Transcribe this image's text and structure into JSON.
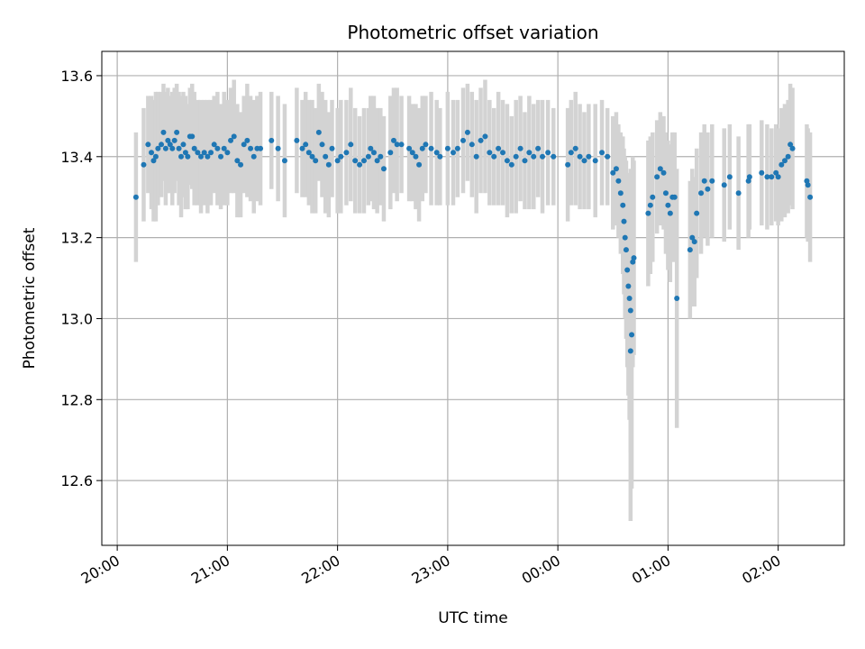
{
  "chart_data": {
    "type": "scatter",
    "title": "Photometric offset variation",
    "xlabel": "UTC time",
    "ylabel": "Photometric offset",
    "xlim": [
      -0.14,
      6.6
    ],
    "ylim": [
      12.44,
      13.66
    ],
    "grid": true,
    "colors": {
      "points": "#1f77b4",
      "errorbars": "#d3d3d3",
      "grid": "#b0b0b0"
    },
    "x_ticks": [
      {
        "value": 0,
        "label": "20:00"
      },
      {
        "value": 1,
        "label": "21:00"
      },
      {
        "value": 2,
        "label": "22:00"
      },
      {
        "value": 3,
        "label": "23:00"
      },
      {
        "value": 4,
        "label": "00:00"
      },
      {
        "value": 5,
        "label": "01:00"
      },
      {
        "value": 6,
        "label": "02:00"
      }
    ],
    "y_ticks": [
      {
        "value": 12.6,
        "label": "12.6"
      },
      {
        "value": 12.8,
        "label": "12.8"
      },
      {
        "value": 13.0,
        "label": "13.0"
      },
      {
        "value": 13.2,
        "label": "13.2"
      },
      {
        "value": 13.4,
        "label": "13.4"
      },
      {
        "value": 13.6,
        "label": "13.6"
      }
    ],
    "points": [
      [
        0.17,
        13.3,
        0.16
      ],
      [
        0.24,
        13.38,
        0.14
      ],
      [
        0.28,
        13.43,
        0.12
      ],
      [
        0.31,
        13.41,
        0.14
      ],
      [
        0.33,
        13.39,
        0.15
      ],
      [
        0.35,
        13.4,
        0.16
      ],
      [
        0.37,
        13.42,
        0.14
      ],
      [
        0.4,
        13.43,
        0.13
      ],
      [
        0.42,
        13.46,
        0.12
      ],
      [
        0.44,
        13.42,
        0.14
      ],
      [
        0.46,
        13.44,
        0.13
      ],
      [
        0.48,
        13.43,
        0.12
      ],
      [
        0.5,
        13.42,
        0.14
      ],
      [
        0.52,
        13.44,
        0.13
      ],
      [
        0.54,
        13.46,
        0.12
      ],
      [
        0.56,
        13.42,
        0.14
      ],
      [
        0.58,
        13.4,
        0.15
      ],
      [
        0.6,
        13.43,
        0.13
      ],
      [
        0.62,
        13.41,
        0.14
      ],
      [
        0.64,
        13.4,
        0.13
      ],
      [
        0.66,
        13.45,
        0.12
      ],
      [
        0.68,
        13.45,
        0.13
      ],
      [
        0.7,
        13.42,
        0.14
      ],
      [
        0.73,
        13.41,
        0.13
      ],
      [
        0.76,
        13.4,
        0.14
      ],
      [
        0.79,
        13.41,
        0.13
      ],
      [
        0.82,
        13.4,
        0.14
      ],
      [
        0.85,
        13.41,
        0.13
      ],
      [
        0.88,
        13.43,
        0.12
      ],
      [
        0.91,
        13.42,
        0.14
      ],
      [
        0.94,
        13.4,
        0.13
      ],
      [
        0.97,
        13.42,
        0.14
      ],
      [
        1.0,
        13.41,
        0.13
      ],
      [
        1.03,
        13.44,
        0.13
      ],
      [
        1.06,
        13.45,
        0.14
      ],
      [
        1.09,
        13.39,
        0.14
      ],
      [
        1.12,
        13.38,
        0.13
      ],
      [
        1.15,
        13.43,
        0.12
      ],
      [
        1.18,
        13.44,
        0.14
      ],
      [
        1.21,
        13.42,
        0.13
      ],
      [
        1.24,
        13.4,
        0.14
      ],
      [
        1.27,
        13.42,
        0.13
      ],
      [
        1.3,
        13.42,
        0.14
      ],
      [
        1.4,
        13.44,
        0.12
      ],
      [
        1.46,
        13.42,
        0.13
      ],
      [
        1.52,
        13.39,
        0.14
      ],
      [
        1.63,
        13.44,
        0.13
      ],
      [
        1.68,
        13.42,
        0.12
      ],
      [
        1.71,
        13.43,
        0.13
      ],
      [
        1.74,
        13.41,
        0.13
      ],
      [
        1.77,
        13.4,
        0.14
      ],
      [
        1.8,
        13.39,
        0.13
      ],
      [
        1.83,
        13.46,
        0.12
      ],
      [
        1.86,
        13.43,
        0.13
      ],
      [
        1.89,
        13.4,
        0.14
      ],
      [
        1.92,
        13.38,
        0.13
      ],
      [
        1.95,
        13.42,
        0.12
      ],
      [
        2.0,
        13.39,
        0.13
      ],
      [
        2.03,
        13.4,
        0.14
      ],
      [
        2.08,
        13.41,
        0.13
      ],
      [
        2.12,
        13.43,
        0.14
      ],
      [
        2.16,
        13.39,
        0.13
      ],
      [
        2.2,
        13.38,
        0.12
      ],
      [
        2.24,
        13.39,
        0.13
      ],
      [
        2.28,
        13.4,
        0.12
      ],
      [
        2.3,
        13.42,
        0.13
      ],
      [
        2.33,
        13.41,
        0.14
      ],
      [
        2.36,
        13.39,
        0.13
      ],
      [
        2.39,
        13.4,
        0.12
      ],
      [
        2.42,
        13.37,
        0.13
      ],
      [
        2.48,
        13.41,
        0.14
      ],
      [
        2.51,
        13.44,
        0.13
      ],
      [
        2.54,
        13.43,
        0.14
      ],
      [
        2.58,
        13.43,
        0.12
      ],
      [
        2.65,
        13.42,
        0.13
      ],
      [
        2.68,
        13.41,
        0.12
      ],
      [
        2.71,
        13.4,
        0.13
      ],
      [
        2.74,
        13.38,
        0.14
      ],
      [
        2.77,
        13.42,
        0.13
      ],
      [
        2.8,
        13.43,
        0.12
      ],
      [
        2.85,
        13.42,
        0.14
      ],
      [
        2.9,
        13.41,
        0.13
      ],
      [
        2.93,
        13.4,
        0.12
      ],
      [
        3.0,
        13.42,
        0.14
      ],
      [
        3.05,
        13.41,
        0.13
      ],
      [
        3.09,
        13.42,
        0.12
      ],
      [
        3.14,
        13.44,
        0.13
      ],
      [
        3.18,
        13.46,
        0.12
      ],
      [
        3.22,
        13.43,
        0.13
      ],
      [
        3.26,
        13.4,
        0.14
      ],
      [
        3.3,
        13.44,
        0.13
      ],
      [
        3.34,
        13.45,
        0.14
      ],
      [
        3.38,
        13.41,
        0.13
      ],
      [
        3.42,
        13.4,
        0.12
      ],
      [
        3.46,
        13.42,
        0.14
      ],
      [
        3.5,
        13.41,
        0.13
      ],
      [
        3.54,
        13.39,
        0.14
      ],
      [
        3.58,
        13.38,
        0.12
      ],
      [
        3.62,
        13.4,
        0.14
      ],
      [
        3.66,
        13.42,
        0.13
      ],
      [
        3.7,
        13.39,
        0.12
      ],
      [
        3.74,
        13.41,
        0.14
      ],
      [
        3.78,
        13.4,
        0.13
      ],
      [
        3.82,
        13.42,
        0.12
      ],
      [
        3.86,
        13.4,
        0.14
      ],
      [
        3.91,
        13.41,
        0.13
      ],
      [
        3.96,
        13.4,
        0.12
      ],
      [
        4.09,
        13.38,
        0.14
      ],
      [
        4.12,
        13.41,
        0.13
      ],
      [
        4.16,
        13.42,
        0.14
      ],
      [
        4.2,
        13.4,
        0.13
      ],
      [
        4.24,
        13.39,
        0.12
      ],
      [
        4.28,
        13.4,
        0.13
      ],
      [
        4.34,
        13.39,
        0.14
      ],
      [
        4.4,
        13.41,
        0.13
      ],
      [
        4.45,
        13.4,
        0.12
      ],
      [
        4.5,
        13.36,
        0.14
      ],
      [
        4.53,
        13.37,
        0.14
      ],
      [
        4.55,
        13.34,
        0.14
      ],
      [
        4.57,
        13.31,
        0.15
      ],
      [
        4.59,
        13.28,
        0.17
      ],
      [
        4.6,
        13.24,
        0.18
      ],
      [
        4.61,
        13.2,
        0.2
      ],
      [
        4.62,
        13.17,
        0.22
      ],
      [
        4.63,
        13.12,
        0.24
      ],
      [
        4.64,
        13.08,
        0.27
      ],
      [
        4.65,
        13.05,
        0.3
      ],
      [
        4.66,
        13.02,
        0.35
      ],
      [
        4.66,
        12.92,
        0.42
      ],
      [
        4.67,
        12.96,
        0.38
      ],
      [
        4.68,
        13.14,
        0.26
      ],
      [
        4.69,
        13.15,
        0.24
      ],
      [
        4.82,
        13.26,
        0.18
      ],
      [
        4.84,
        13.28,
        0.17
      ],
      [
        4.86,
        13.3,
        0.16
      ],
      [
        4.9,
        13.35,
        0.14
      ],
      [
        4.93,
        13.37,
        0.14
      ],
      [
        4.96,
        13.36,
        0.14
      ],
      [
        4.98,
        13.31,
        0.15
      ],
      [
        5.0,
        13.28,
        0.16
      ],
      [
        5.02,
        13.26,
        0.17
      ],
      [
        5.04,
        13.3,
        0.16
      ],
      [
        5.06,
        13.3,
        0.16
      ],
      [
        5.08,
        13.05,
        0.32
      ],
      [
        5.2,
        13.17,
        0.17
      ],
      [
        5.22,
        13.2,
        0.17
      ],
      [
        5.24,
        13.19,
        0.16
      ],
      [
        5.26,
        13.26,
        0.16
      ],
      [
        5.3,
        13.31,
        0.15
      ],
      [
        5.33,
        13.34,
        0.14
      ],
      [
        5.36,
        13.32,
        0.14
      ],
      [
        5.4,
        13.34,
        0.14
      ],
      [
        5.51,
        13.33,
        0.14
      ],
      [
        5.56,
        13.35,
        0.13
      ],
      [
        5.64,
        13.31,
        0.14
      ],
      [
        5.73,
        13.34,
        0.14
      ],
      [
        5.74,
        13.35,
        0.13
      ],
      [
        5.85,
        13.36,
        0.13
      ],
      [
        5.9,
        13.35,
        0.13
      ],
      [
        5.94,
        13.35,
        0.12
      ],
      [
        5.98,
        13.36,
        0.12
      ],
      [
        6.0,
        13.35,
        0.12
      ],
      [
        6.03,
        13.38,
        0.14
      ],
      [
        6.06,
        13.39,
        0.14
      ],
      [
        6.09,
        13.4,
        0.14
      ],
      [
        6.11,
        13.43,
        0.15
      ],
      [
        6.13,
        13.42,
        0.15
      ],
      [
        6.26,
        13.34,
        0.14
      ],
      [
        6.27,
        13.33,
        0.14
      ],
      [
        6.29,
        13.3,
        0.16
      ]
    ]
  }
}
